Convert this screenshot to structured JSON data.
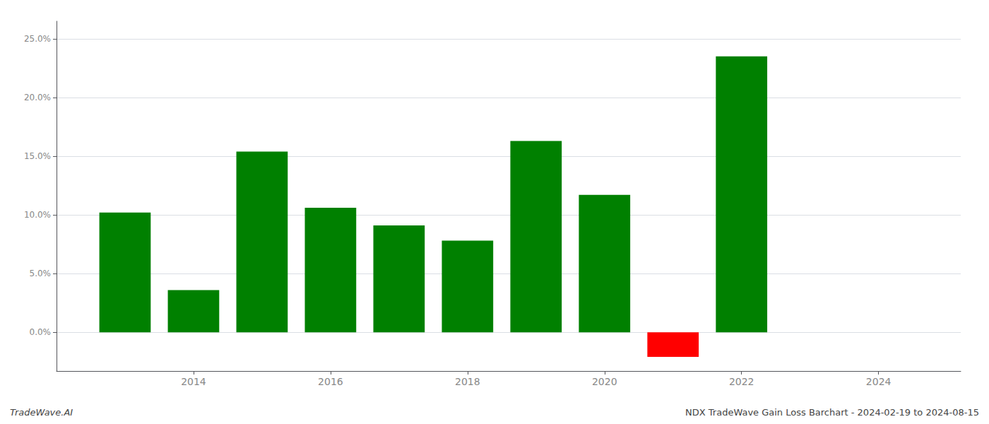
{
  "chart_data": {
    "type": "bar",
    "x": [
      2013,
      2014,
      2015,
      2016,
      2017,
      2018,
      2019,
      2020,
      2021,
      2022,
      2023
    ],
    "values": [
      0.102,
      0.036,
      0.154,
      0.106,
      0.091,
      0.078,
      0.163,
      0.117,
      -0.021,
      0.235,
      0.0
    ],
    "colors": [
      "#008000",
      "#008000",
      "#008000",
      "#008000",
      "#008000",
      "#008000",
      "#008000",
      "#008000",
      "#ff0000",
      "#008000",
      "#008000"
    ],
    "xlim": [
      2012.0,
      2025.2
    ],
    "xticks": [
      2014,
      2016,
      2018,
      2020,
      2022,
      2024
    ],
    "ylim": [
      -0.033,
      0.265
    ],
    "yticks": [
      {
        "value": 0.0,
        "label": "0.0%"
      },
      {
        "value": 0.05,
        "label": "5.0%"
      },
      {
        "value": 0.1,
        "label": "10.0%"
      },
      {
        "value": 0.15,
        "label": "15.0%"
      },
      {
        "value": 0.2,
        "label": "20.0%"
      },
      {
        "value": 0.25,
        "label": "25.0%"
      }
    ],
    "grid": true,
    "annotations": [
      "TradeWave.AI",
      "NDX TradeWave Gain Loss Barchart - 2024-02-19 to 2024-08-15"
    ]
  }
}
